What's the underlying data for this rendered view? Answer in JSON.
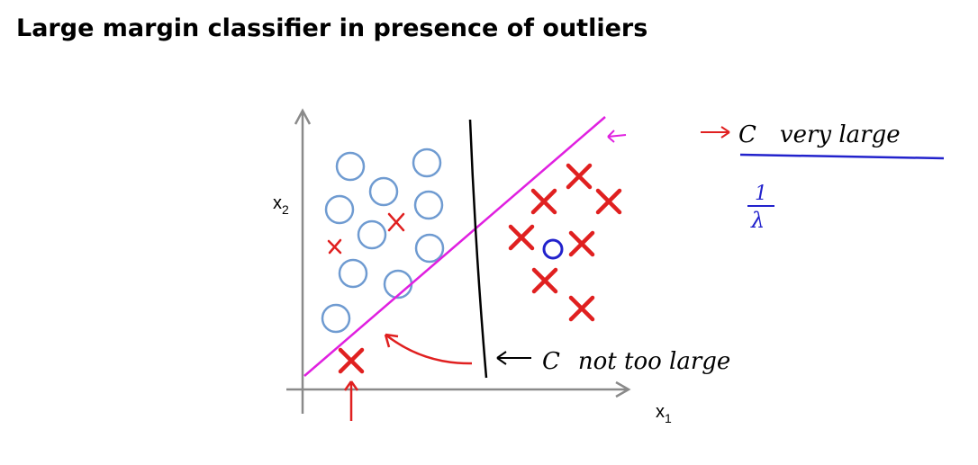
{
  "title": "Large margin classifier in presence of outliers",
  "axes": {
    "y_label": {
      "base": "x",
      "sub": "2"
    },
    "x_label": {
      "base": "x",
      "sub": "1"
    }
  },
  "annotations": {
    "c_not_large": {
      "symbol": "C",
      "text": "not too large"
    },
    "c_very_large": {
      "symbol": "C",
      "text": "very large"
    },
    "inverse_lambda": {
      "numerator": "1",
      "denominator": "λ"
    }
  }
}
